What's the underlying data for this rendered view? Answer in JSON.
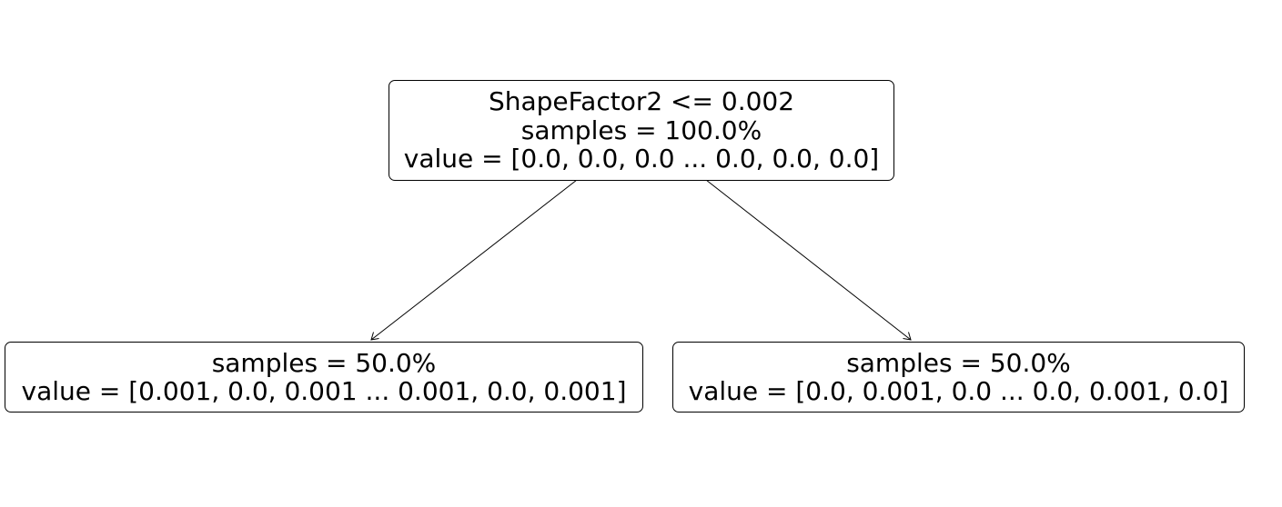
{
  "tree": {
    "root": {
      "condition": "ShapeFactor2 <= 0.002",
      "samples": "samples = 100.0%",
      "value": "value = [0.0, 0.0, 0.0 ... 0.0, 0.0, 0.0]"
    },
    "left": {
      "samples": "samples = 50.0%",
      "value": "value = [0.001, 0.0, 0.001 ... 0.001, 0.0, 0.001]"
    },
    "right": {
      "samples": "samples = 50.0%",
      "value": "value = [0.0, 0.001, 0.0 ... 0.0, 0.001, 0.0]"
    }
  },
  "colors": {
    "stroke": "#000000",
    "fill": "#ffffff"
  }
}
